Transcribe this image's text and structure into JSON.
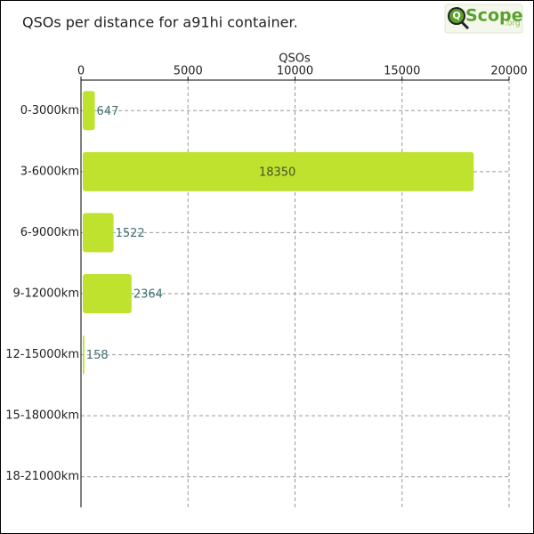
{
  "chart_data": {
    "type": "barh",
    "title": "QSOs per distance for a91hi container.",
    "logo": {
      "mark": "Q",
      "text": "Scope",
      "suffix": ".org"
    },
    "xlabel": "QSOs",
    "categories": [
      "0-3000km",
      "3-6000km",
      "6-9000km",
      "9-12000km",
      "12-15000km",
      "15-18000km",
      "18-21000km"
    ],
    "values": [
      647,
      18350,
      1522,
      2364,
      158,
      0,
      0
    ],
    "color": "#bfe22f",
    "xlim": [
      0,
      20000
    ],
    "xticks": [
      0,
      5000,
      10000,
      15000,
      20000
    ],
    "grid": true
  }
}
